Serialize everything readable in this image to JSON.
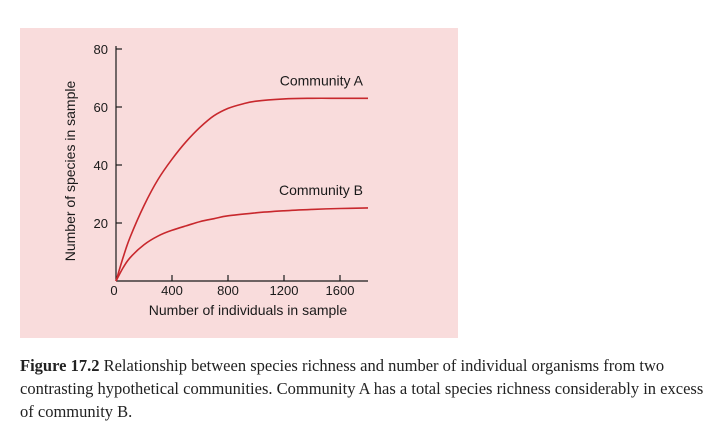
{
  "chart_data": {
    "type": "line",
    "xlabel": "Number of individuals in sample",
    "ylabel": "Number of species in sample",
    "xlim": [
      0,
      1800
    ],
    "ylim": [
      0,
      80
    ],
    "xticks": [
      0,
      400,
      800,
      1200,
      1600
    ],
    "yticks": [
      20,
      40,
      60,
      80
    ],
    "grid": false,
    "series": [
      {
        "name": "Community A",
        "color": "#c8282d",
        "x": [
          0,
          50,
          100,
          200,
          300,
          400,
          500,
          600,
          700,
          800,
          900,
          1000,
          1200,
          1400,
          1600,
          1800
        ],
        "y": [
          0,
          8,
          15,
          26,
          35,
          42,
          48,
          53,
          57,
          59.5,
          61,
          62,
          62.8,
          63,
          63,
          63
        ]
      },
      {
        "name": "Community B",
        "color": "#c8282d",
        "x": [
          0,
          50,
          100,
          200,
          300,
          400,
          500,
          600,
          700,
          800,
          1000,
          1200,
          1400,
          1600,
          1800
        ],
        "y": [
          0,
          4.5,
          8,
          12.5,
          15.5,
          17.5,
          19,
          20.5,
          21.5,
          22.5,
          23.5,
          24.2,
          24.7,
          25,
          25.2
        ]
      }
    ]
  },
  "caption": {
    "figure_label": "Figure 17.2",
    "text": "Relationship between species richness and number of individual organisms from two contrasting hypothetical communities. Community A has a total species richness considerably in excess of community B."
  }
}
